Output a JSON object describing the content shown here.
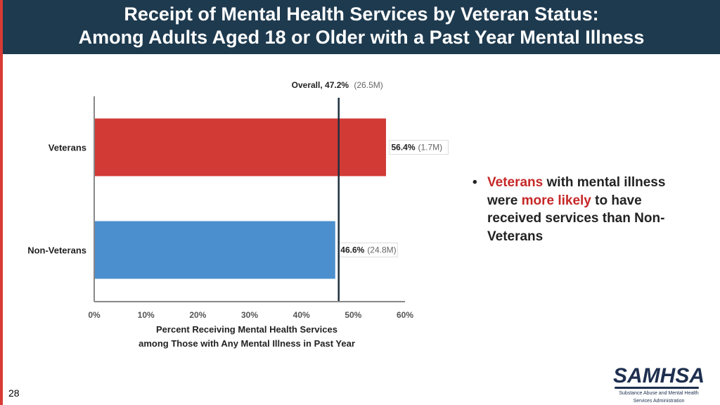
{
  "slide": {
    "title_line1": "Receipt of Mental Health Services by Veteran Status:",
    "title_line2": "Among Adults Aged 18 or Older with a Past Year Mental Illness",
    "page_number": "28"
  },
  "bullet": {
    "part1": "Veterans",
    "part2": " with mental illness were ",
    "part3": "more likely",
    "part4": " to have received services than Non-Veterans"
  },
  "logo": {
    "word": "SAMHSA",
    "sub1": "Substance Abuse and Mental Health",
    "sub2": "Services Administration"
  },
  "colors": {
    "accent_red": "#d73a35",
    "header": "#1e3a4f",
    "veterans_bar": "#d13a35",
    "nonveterans_bar": "#4c8fce"
  },
  "chart_data": {
    "type": "bar",
    "orientation": "horizontal",
    "categories": [
      "Veterans",
      "Non-Veterans"
    ],
    "values": [
      56.4,
      46.6
    ],
    "value_labels": [
      "56.4%",
      "46.6%"
    ],
    "count_labels": [
      "(1.7M)",
      "(24.8M)"
    ],
    "bar_colors": [
      "#d13a35",
      "#4c8fce"
    ],
    "reference_line": {
      "value": 47.2,
      "label": "Overall, 47.2%",
      "count": "(26.5M)"
    },
    "xlim": [
      0,
      60
    ],
    "ticks": [
      0,
      10,
      20,
      30,
      40,
      50,
      60
    ],
    "tick_labels": [
      "0%",
      "10%",
      "20%",
      "30%",
      "40%",
      "50%",
      "60%"
    ],
    "xlabel_line1": "Percent Receiving Mental Health Services",
    "xlabel_line2": "among Those with Any Mental Illness in Past Year",
    "grid": false
  }
}
